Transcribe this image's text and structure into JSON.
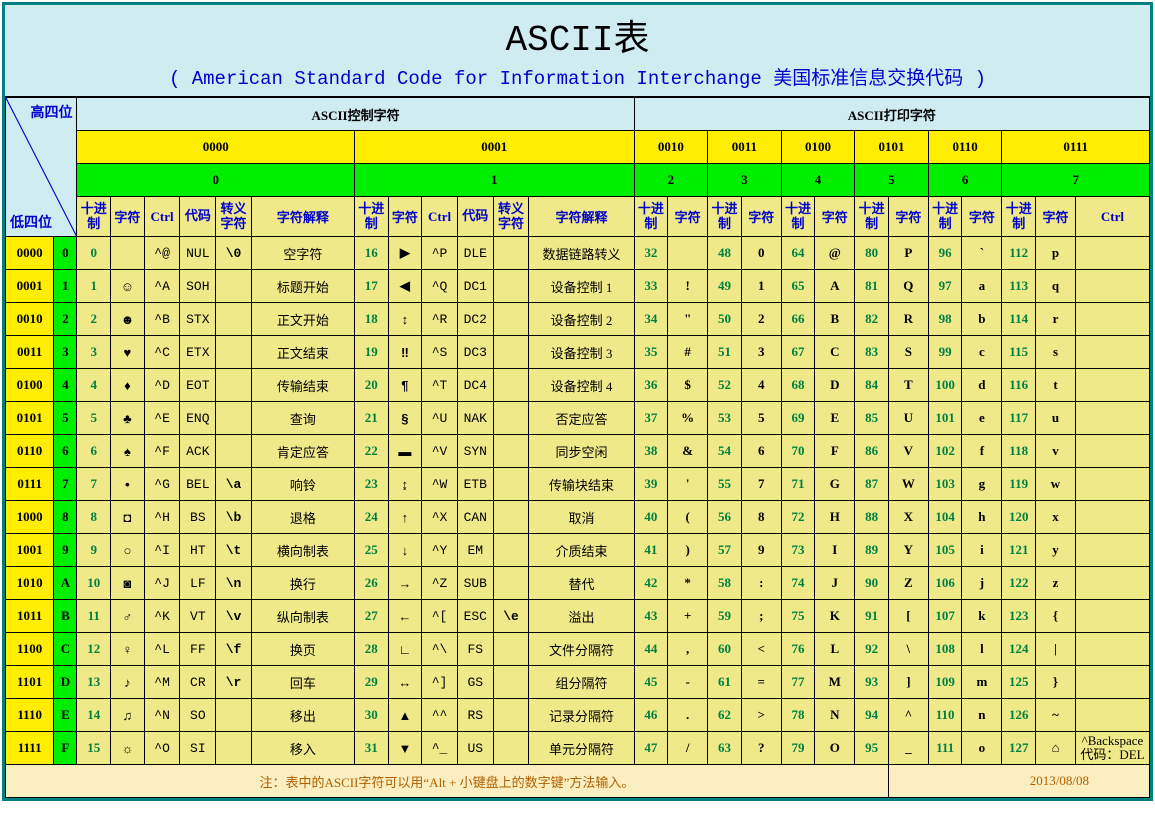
{
  "title": {
    "main": "ASCII表",
    "sub": "( American Standard Code for Information Interchange  美国标准信息交换代码 )"
  },
  "diag": {
    "high4": "高四位",
    "low4": "低四位"
  },
  "banners": {
    "control": "ASCII控制字符",
    "printable": "ASCII打印字符"
  },
  "high_nibbles": {
    "bits": [
      "0000",
      "0001",
      "0010",
      "0011",
      "0100",
      "0101",
      "0110",
      "0111"
    ],
    "digits": [
      "0",
      "1",
      "2",
      "3",
      "4",
      "5",
      "6",
      "7"
    ]
  },
  "ctrl_headers": {
    "dec": "十进制",
    "char": "字符",
    "ctrl": "Ctrl",
    "code": "代码",
    "esc": "转义字符",
    "desc": "字符解释"
  },
  "print_headers": {
    "dec": "十进制",
    "char": "字符",
    "ctrl": "Ctrl"
  },
  "low_nibbles": {
    "bits": [
      "0000",
      "0001",
      "0010",
      "0011",
      "0100",
      "0101",
      "0110",
      "0111",
      "1000",
      "1001",
      "1010",
      "1011",
      "1100",
      "1101",
      "1110",
      "1111"
    ],
    "digits": [
      "0",
      "1",
      "2",
      "3",
      "4",
      "5",
      "6",
      "7",
      "8",
      "9",
      "A",
      "B",
      "C",
      "D",
      "E",
      "F"
    ]
  },
  "ctrl0": [
    {
      "dec": "0",
      "glyph": "",
      "ctrl": "^@",
      "code": "NUL",
      "esc": "\\0",
      "desc": "空字符"
    },
    {
      "dec": "1",
      "glyph": "☺",
      "ctrl": "^A",
      "code": "SOH",
      "esc": "",
      "desc": "标题开始"
    },
    {
      "dec": "2",
      "glyph": "☻",
      "ctrl": "^B",
      "code": "STX",
      "esc": "",
      "desc": "正文开始"
    },
    {
      "dec": "3",
      "glyph": "♥",
      "ctrl": "^C",
      "code": "ETX",
      "esc": "",
      "desc": "正文结束"
    },
    {
      "dec": "4",
      "glyph": "♦",
      "ctrl": "^D",
      "code": "EOT",
      "esc": "",
      "desc": "传输结束"
    },
    {
      "dec": "5",
      "glyph": "♣",
      "ctrl": "^E",
      "code": "ENQ",
      "esc": "",
      "desc": "查询"
    },
    {
      "dec": "6",
      "glyph": "♠",
      "ctrl": "^F",
      "code": "ACK",
      "esc": "",
      "desc": "肯定应答"
    },
    {
      "dec": "7",
      "glyph": "•",
      "ctrl": "^G",
      "code": "BEL",
      "esc": "\\a",
      "desc": "响铃"
    },
    {
      "dec": "8",
      "glyph": "◘",
      "ctrl": "^H",
      "code": "BS",
      "esc": "\\b",
      "desc": "退格"
    },
    {
      "dec": "9",
      "glyph": "○",
      "ctrl": "^I",
      "code": "HT",
      "esc": "\\t",
      "desc": "横向制表"
    },
    {
      "dec": "10",
      "glyph": "◙",
      "ctrl": "^J",
      "code": "LF",
      "esc": "\\n",
      "desc": "换行"
    },
    {
      "dec": "11",
      "glyph": "♂",
      "ctrl": "^K",
      "code": "VT",
      "esc": "\\v",
      "desc": "纵向制表"
    },
    {
      "dec": "12",
      "glyph": "♀",
      "ctrl": "^L",
      "code": "FF",
      "esc": "\\f",
      "desc": "换页"
    },
    {
      "dec": "13",
      "glyph": "♪",
      "ctrl": "^M",
      "code": "CR",
      "esc": "\\r",
      "desc": "回车"
    },
    {
      "dec": "14",
      "glyph": "♫",
      "ctrl": "^N",
      "code": "SO",
      "esc": "",
      "desc": "移出"
    },
    {
      "dec": "15",
      "glyph": "☼",
      "ctrl": "^O",
      "code": "SI",
      "esc": "",
      "desc": "移入"
    }
  ],
  "ctrl1": [
    {
      "dec": "16",
      "glyph": "▶",
      "ctrl": "^P",
      "code": "DLE",
      "esc": "",
      "desc": "数据链路转义"
    },
    {
      "dec": "17",
      "glyph": "◀",
      "ctrl": "^Q",
      "code": "DC1",
      "esc": "",
      "desc": "设备控制 1"
    },
    {
      "dec": "18",
      "glyph": "↕",
      "ctrl": "^R",
      "code": "DC2",
      "esc": "",
      "desc": "设备控制 2"
    },
    {
      "dec": "19",
      "glyph": "‼",
      "ctrl": "^S",
      "code": "DC3",
      "esc": "",
      "desc": "设备控制 3"
    },
    {
      "dec": "20",
      "glyph": "¶",
      "ctrl": "^T",
      "code": "DC4",
      "esc": "",
      "desc": "设备控制 4"
    },
    {
      "dec": "21",
      "glyph": "§",
      "ctrl": "^U",
      "code": "NAK",
      "esc": "",
      "desc": "否定应答"
    },
    {
      "dec": "22",
      "glyph": "▬",
      "ctrl": "^V",
      "code": "SYN",
      "esc": "",
      "desc": "同步空闲"
    },
    {
      "dec": "23",
      "glyph": "↨",
      "ctrl": "^W",
      "code": "ETB",
      "esc": "",
      "desc": "传输块结束"
    },
    {
      "dec": "24",
      "glyph": "↑",
      "ctrl": "^X",
      "code": "CAN",
      "esc": "",
      "desc": "取消"
    },
    {
      "dec": "25",
      "glyph": "↓",
      "ctrl": "^Y",
      "code": "EM",
      "esc": "",
      "desc": "介质结束"
    },
    {
      "dec": "26",
      "glyph": "→",
      "ctrl": "^Z",
      "code": "SUB",
      "esc": "",
      "desc": "替代"
    },
    {
      "dec": "27",
      "glyph": "←",
      "ctrl": "^[",
      "code": "ESC",
      "esc": "\\e",
      "desc": "溢出"
    },
    {
      "dec": "28",
      "glyph": "∟",
      "ctrl": "^\\",
      "code": "FS",
      "esc": "",
      "desc": "文件分隔符"
    },
    {
      "dec": "29",
      "glyph": "↔",
      "ctrl": "^]",
      "code": "GS",
      "esc": "",
      "desc": "组分隔符"
    },
    {
      "dec": "30",
      "glyph": "▲",
      "ctrl": "^^",
      "code": "RS",
      "esc": "",
      "desc": "记录分隔符"
    },
    {
      "dec": "31",
      "glyph": "▼",
      "ctrl": "^_",
      "code": "US",
      "esc": "",
      "desc": "单元分隔符"
    }
  ],
  "p2": [
    {
      "dec": "32",
      "ch": " "
    },
    {
      "dec": "33",
      "ch": "!"
    },
    {
      "dec": "34",
      "ch": "\""
    },
    {
      "dec": "35",
      "ch": "#"
    },
    {
      "dec": "36",
      "ch": "$"
    },
    {
      "dec": "37",
      "ch": "%"
    },
    {
      "dec": "38",
      "ch": "&"
    },
    {
      "dec": "39",
      "ch": "'"
    },
    {
      "dec": "40",
      "ch": "("
    },
    {
      "dec": "41",
      "ch": ")"
    },
    {
      "dec": "42",
      "ch": "*"
    },
    {
      "dec": "43",
      "ch": "+"
    },
    {
      "dec": "44",
      "ch": ","
    },
    {
      "dec": "45",
      "ch": "-"
    },
    {
      "dec": "46",
      "ch": "."
    },
    {
      "dec": "47",
      "ch": "/"
    }
  ],
  "p3": [
    {
      "dec": "48",
      "ch": "0"
    },
    {
      "dec": "49",
      "ch": "1"
    },
    {
      "dec": "50",
      "ch": "2"
    },
    {
      "dec": "51",
      "ch": "3"
    },
    {
      "dec": "52",
      "ch": "4"
    },
    {
      "dec": "53",
      "ch": "5"
    },
    {
      "dec": "54",
      "ch": "6"
    },
    {
      "dec": "55",
      "ch": "7"
    },
    {
      "dec": "56",
      "ch": "8"
    },
    {
      "dec": "57",
      "ch": "9"
    },
    {
      "dec": "58",
      "ch": ":"
    },
    {
      "dec": "59",
      "ch": ";"
    },
    {
      "dec": "60",
      "ch": "<"
    },
    {
      "dec": "61",
      "ch": "="
    },
    {
      "dec": "62",
      "ch": ">"
    },
    {
      "dec": "63",
      "ch": "?"
    }
  ],
  "p4": [
    {
      "dec": "64",
      "ch": "@"
    },
    {
      "dec": "65",
      "ch": "A"
    },
    {
      "dec": "66",
      "ch": "B"
    },
    {
      "dec": "67",
      "ch": "C"
    },
    {
      "dec": "68",
      "ch": "D"
    },
    {
      "dec": "69",
      "ch": "E"
    },
    {
      "dec": "70",
      "ch": "F"
    },
    {
      "dec": "71",
      "ch": "G"
    },
    {
      "dec": "72",
      "ch": "H"
    },
    {
      "dec": "73",
      "ch": "I"
    },
    {
      "dec": "74",
      "ch": "J"
    },
    {
      "dec": "75",
      "ch": "K"
    },
    {
      "dec": "76",
      "ch": "L"
    },
    {
      "dec": "77",
      "ch": "M"
    },
    {
      "dec": "78",
      "ch": "N"
    },
    {
      "dec": "79",
      "ch": "O"
    }
  ],
  "p5": [
    {
      "dec": "80",
      "ch": "P"
    },
    {
      "dec": "81",
      "ch": "Q"
    },
    {
      "dec": "82",
      "ch": "R"
    },
    {
      "dec": "83",
      "ch": "S"
    },
    {
      "dec": "84",
      "ch": "T"
    },
    {
      "dec": "85",
      "ch": "U"
    },
    {
      "dec": "86",
      "ch": "V"
    },
    {
      "dec": "87",
      "ch": "W"
    },
    {
      "dec": "88",
      "ch": "X"
    },
    {
      "dec": "89",
      "ch": "Y"
    },
    {
      "dec": "90",
      "ch": "Z"
    },
    {
      "dec": "91",
      "ch": "["
    },
    {
      "dec": "92",
      "ch": "\\"
    },
    {
      "dec": "93",
      "ch": "]"
    },
    {
      "dec": "94",
      "ch": "^"
    },
    {
      "dec": "95",
      "ch": "_"
    }
  ],
  "p6": [
    {
      "dec": "96",
      "ch": "`"
    },
    {
      "dec": "97",
      "ch": "a"
    },
    {
      "dec": "98",
      "ch": "b"
    },
    {
      "dec": "99",
      "ch": "c"
    },
    {
      "dec": "100",
      "ch": "d"
    },
    {
      "dec": "101",
      "ch": "e"
    },
    {
      "dec": "102",
      "ch": "f"
    },
    {
      "dec": "103",
      "ch": "g"
    },
    {
      "dec": "104",
      "ch": "h"
    },
    {
      "dec": "105",
      "ch": "i"
    },
    {
      "dec": "106",
      "ch": "j"
    },
    {
      "dec": "107",
      "ch": "k"
    },
    {
      "dec": "108",
      "ch": "l"
    },
    {
      "dec": "109",
      "ch": "m"
    },
    {
      "dec": "110",
      "ch": "n"
    },
    {
      "dec": "111",
      "ch": "o"
    }
  ],
  "p7": [
    {
      "dec": "112",
      "ch": "p",
      "extra": ""
    },
    {
      "dec": "113",
      "ch": "q",
      "extra": ""
    },
    {
      "dec": "114",
      "ch": "r",
      "extra": ""
    },
    {
      "dec": "115",
      "ch": "s",
      "extra": ""
    },
    {
      "dec": "116",
      "ch": "t",
      "extra": ""
    },
    {
      "dec": "117",
      "ch": "u",
      "extra": ""
    },
    {
      "dec": "118",
      "ch": "v",
      "extra": ""
    },
    {
      "dec": "119",
      "ch": "w",
      "extra": ""
    },
    {
      "dec": "120",
      "ch": "x",
      "extra": ""
    },
    {
      "dec": "121",
      "ch": "y",
      "extra": ""
    },
    {
      "dec": "122",
      "ch": "z",
      "extra": ""
    },
    {
      "dec": "123",
      "ch": "{",
      "extra": ""
    },
    {
      "dec": "124",
      "ch": "|",
      "extra": ""
    },
    {
      "dec": "125",
      "ch": "}",
      "extra": ""
    },
    {
      "dec": "126",
      "ch": "~",
      "extra": ""
    },
    {
      "dec": "127",
      "ch": "⌂",
      "extra": "^Backspace 代码：DEL"
    }
  ],
  "footer": {
    "note": "注：表中的ASCII字符可以用“Alt + 小键盘上的数字键”方法输入。",
    "date": "2013/08/08"
  },
  "colors": {
    "frame": "#008080",
    "title_bg": "#cfecf1",
    "yellow": "#ffee00",
    "green": "#00ee00",
    "body": "#efe98a",
    "blue_text": "#0000cc",
    "dec_text": "#008040"
  }
}
